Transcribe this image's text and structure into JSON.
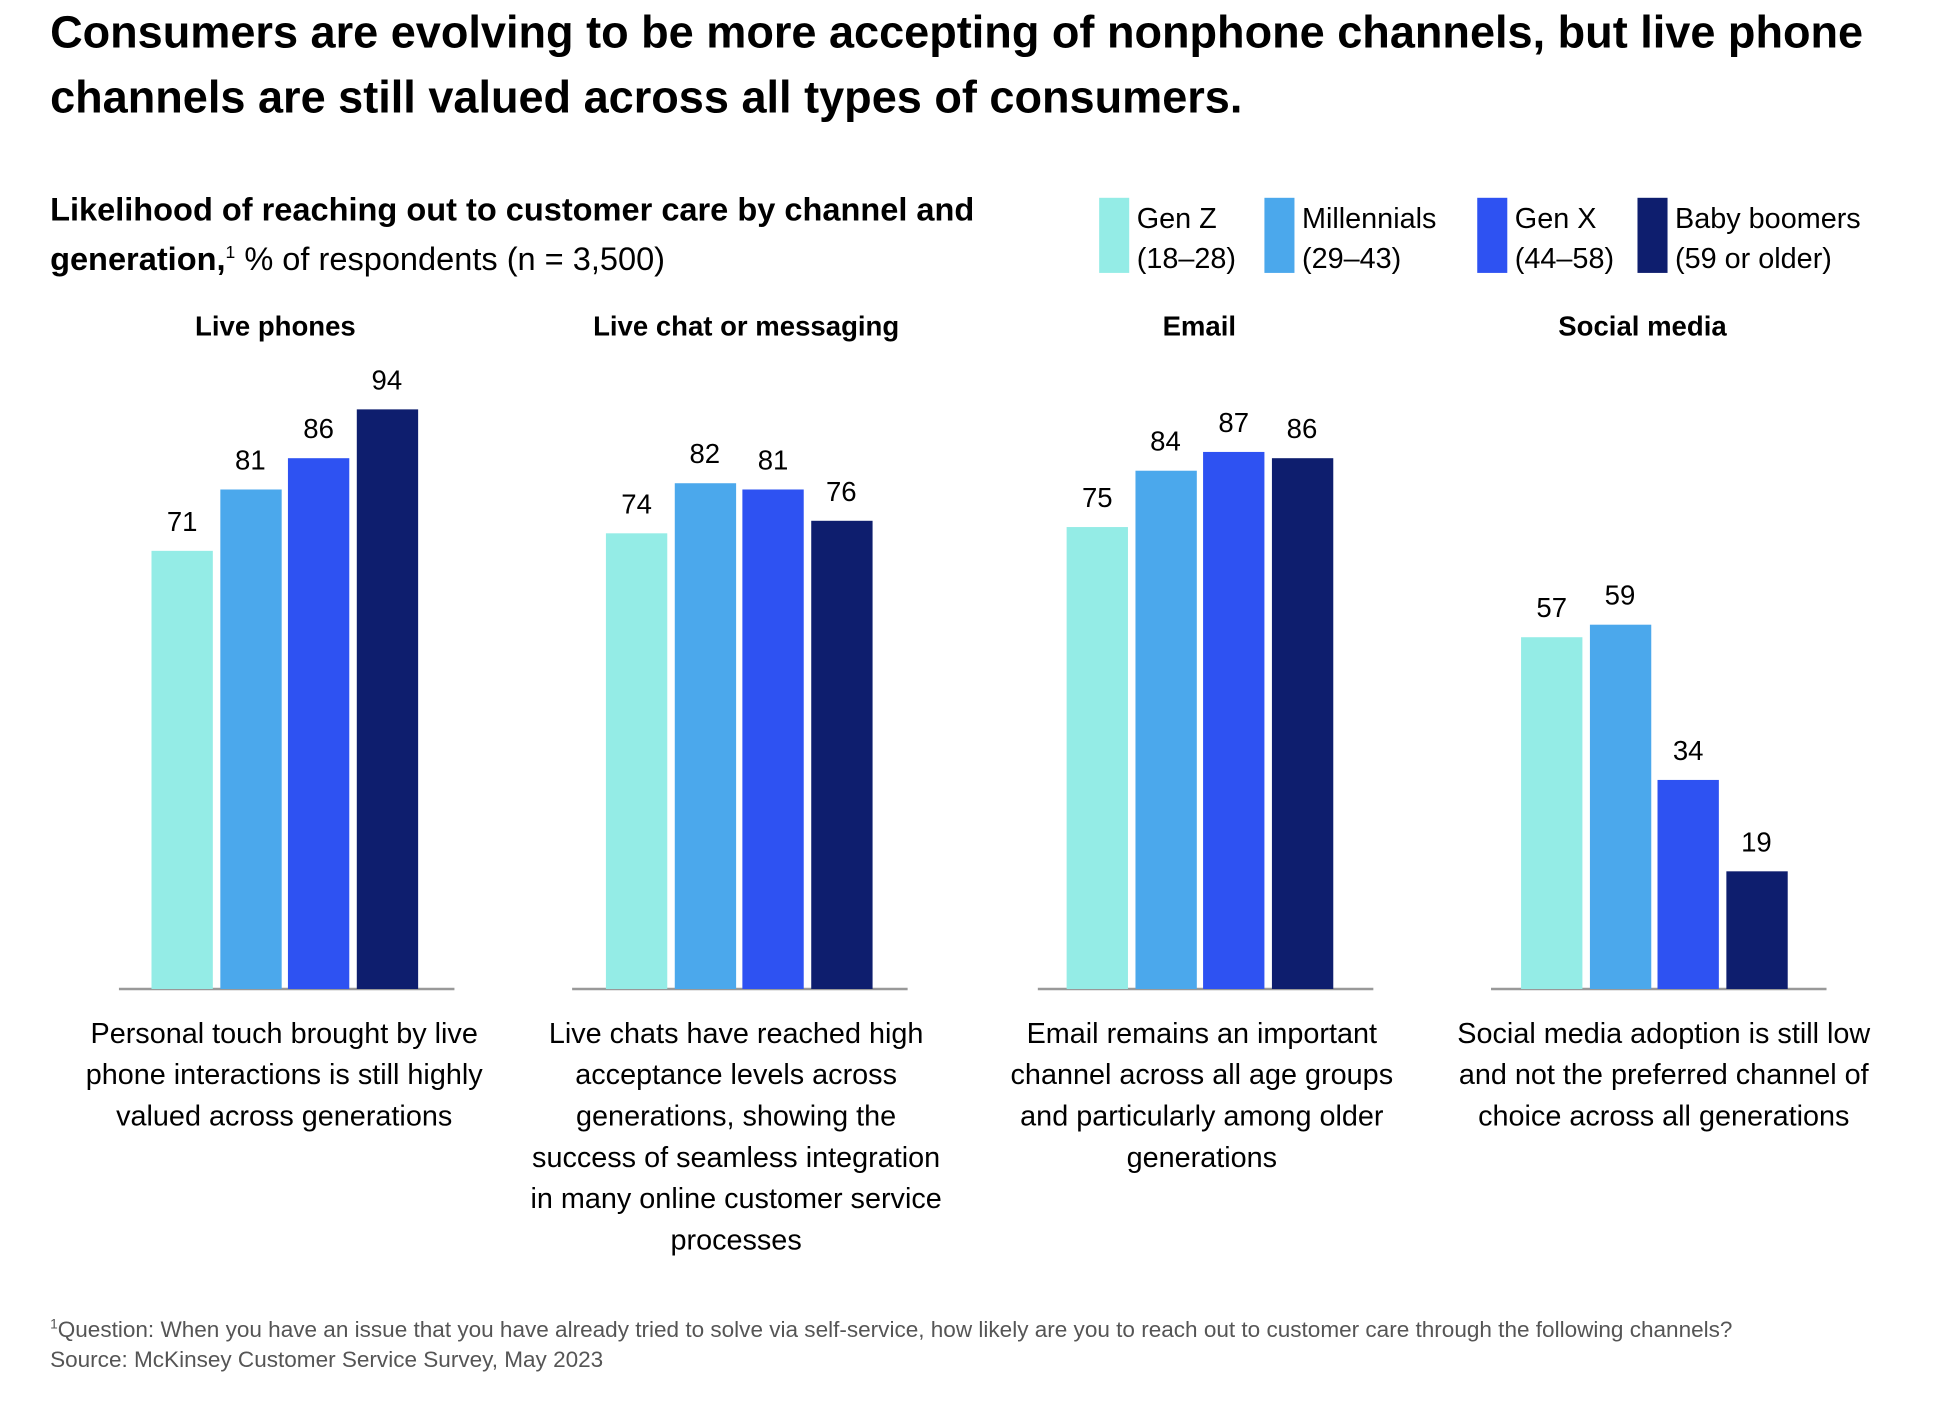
{
  "title": "Consumers are evolving to be more accepting of nonphone channels, but live phone channels are still valued across all types of consumers.",
  "subtitle": {
    "bold": "Likelihood of reaching out to customer care by channel and generation,",
    "sup": "1",
    "rest": " % of respondents (n = 3,500)"
  },
  "chart_data": {
    "type": "bar",
    "ylim": [
      0,
      100
    ],
    "grid": false,
    "legend_placement": "top-right",
    "series": [
      {
        "name": "Gen Z",
        "range": "(18–28)",
        "color": "#94ECE6"
      },
      {
        "name": "Millennials",
        "range": "(29–43)",
        "color": "#4BA8EC"
      },
      {
        "name": "Gen X",
        "range": "(44–58)",
        "color": "#2E52F2"
      },
      {
        "name": "Baby boomers",
        "range": "(59 or older)",
        "color": "#0E1E6E"
      }
    ],
    "panels": [
      {
        "title": "Live phones",
        "values": [
          71,
          81,
          86,
          94
        ],
        "note": "Personal touch brought by live phone interactions is still highly valued across generations"
      },
      {
        "title": "Live chat or messaging",
        "values": [
          74,
          82,
          81,
          76
        ],
        "note": "Live chats have reached high acceptance levels across generations, showing the success of seamless integration in many online customer service processes"
      },
      {
        "title": "Email",
        "values": [
          75,
          84,
          87,
          86
        ],
        "note": "Email remains an important channel across all age groups and particularly among older generations"
      },
      {
        "title": "Social media",
        "values": [
          57,
          59,
          34,
          19
        ],
        "note": "Social media adoption is still low and not the preferred channel of choice across all generations"
      }
    ]
  },
  "footer": {
    "sup": "1",
    "question": "Question: When you have an issue that you have already tried to solve via self-service, how likely are you to reach out to customer care through the following channels?",
    "source": "Source: McKinsey Customer Service Survey, May 2023"
  }
}
